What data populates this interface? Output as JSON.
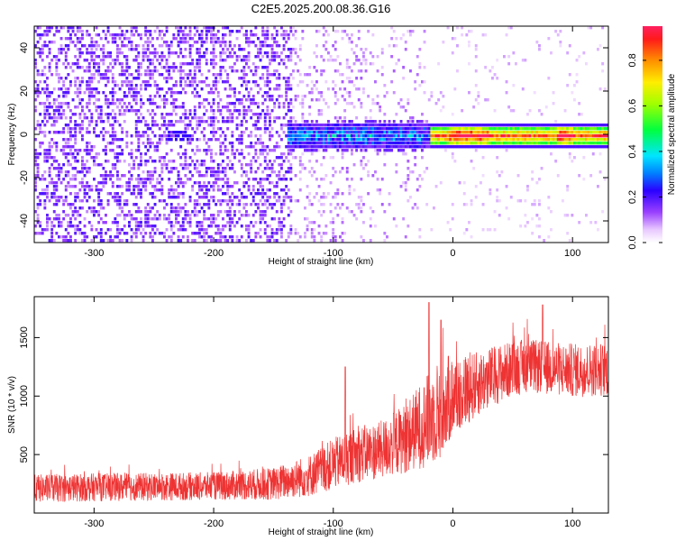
{
  "title": "C2E5.2025.200.08.36.G16",
  "chart_data": [
    {
      "type": "heatmap",
      "xlabel": "Height of straight line (km)",
      "ylabel": "Frequency (Hz)",
      "xlim": [
        -350,
        130
      ],
      "ylim": [
        -50,
        50
      ],
      "xticks": [
        -300,
        -200,
        -100,
        0,
        100
      ],
      "xtick_labels": [
        "-300",
        "-200",
        "-100",
        "0",
        "100"
      ],
      "yticks": [
        -40,
        -20,
        0,
        20,
        40
      ],
      "ytick_labels": [
        "-40",
        "-20",
        "0",
        "20",
        "40"
      ],
      "colorbar": {
        "label": "Normalized spectral amplitude",
        "range": [
          0,
          0.95
        ],
        "ticks": [
          0,
          0.2,
          0.4,
          0.6,
          0.8
        ],
        "tick_labels": [
          "0.0",
          "0.2",
          "0.4",
          "0.6",
          "0.8"
        ],
        "colormap": "rainbow (white → violet → blue → cyan → green → yellow → orange → red)"
      },
      "features": [
        {
          "x_range": [
            -350,
            -135
          ],
          "description": "noise",
          "level": 0.1
        },
        {
          "x_range": [
            -135,
            -20
          ],
          "center_freq_hz": 0,
          "level": 0.3
        },
        {
          "x_range": [
            -20,
            130
          ],
          "center_freq_hz": 0,
          "level": 0.75
        },
        {
          "x_range": [
            -235,
            -225
          ],
          "center_freq_hz": 0,
          "level": 0.15
        }
      ]
    },
    {
      "type": "line",
      "xlabel": "Height of straight line (km)",
      "ylabel": "SNR (10 * v/v)",
      "xlim": [
        -350,
        130
      ],
      "ylim": [
        0,
        1850
      ],
      "xticks": [
        -300,
        -200,
        -100,
        0,
        100
      ],
      "xtick_labels": [
        "-300",
        "-200",
        "-100",
        "0",
        "100"
      ],
      "yticks": [
        500,
        1000,
        1500
      ],
      "ytick_labels": [
        "500",
        "1000",
        "1500"
      ],
      "color": "#ee3333",
      "envelope": {
        "x": [
          -350,
          -300,
          -250,
          -200,
          -150,
          -120,
          -100,
          -80,
          -60,
          -40,
          -20,
          -10,
          0,
          20,
          40,
          60,
          80,
          100,
          130
        ],
        "mean": [
          210,
          220,
          225,
          230,
          250,
          320,
          420,
          500,
          540,
          640,
          800,
          900,
          1000,
          1100,
          1200,
          1260,
          1240,
          1220,
          1230
        ],
        "spread": [
          120,
          120,
          120,
          120,
          140,
          180,
          220,
          240,
          250,
          300,
          400,
          450,
          350,
          280,
          250,
          230,
          230,
          230,
          230
        ]
      },
      "notable_spikes": [
        {
          "x": -90,
          "y": 1250
        },
        {
          "x": -20,
          "y": 1800
        },
        {
          "x": -10,
          "y": 1650
        },
        {
          "x": 75,
          "y": 1780
        }
      ]
    }
  ]
}
